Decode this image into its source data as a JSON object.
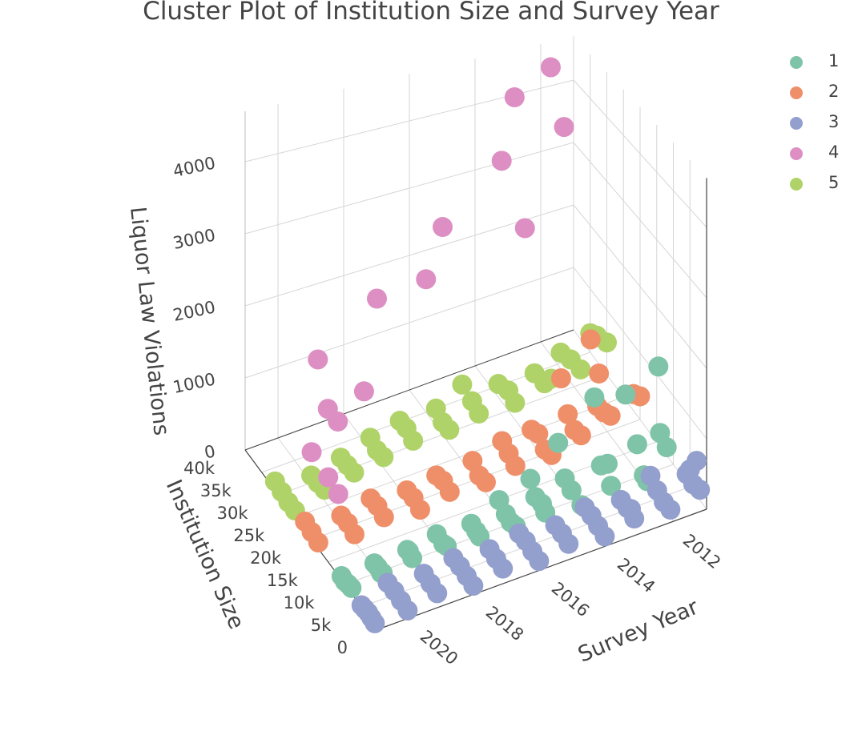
{
  "chart_data": {
    "type": "scatter",
    "title": "Cluster Plot of Institution Size and Survey Year",
    "x_axis": {
      "label": "Survey Year",
      "ticks": [
        "2012",
        "2014",
        "2016",
        "2018",
        "2020"
      ],
      "range": [
        2011,
        2021
      ]
    },
    "y_axis": {
      "label": "Institution Size",
      "ticks": [
        "0",
        "5k",
        "10k",
        "15k",
        "20k",
        "25k",
        "30k",
        "35k",
        "40k"
      ],
      "range": [
        0,
        40000
      ]
    },
    "z_axis": {
      "label": "Liquor Law Violations",
      "ticks": [
        "0",
        "1000",
        "2000",
        "3000",
        "4000"
      ],
      "range": [
        0,
        4700
      ]
    },
    "legend": {
      "position": "top-right"
    },
    "series": [
      {
        "name": "1",
        "color": "#7fc4a8",
        "points": [
          [
            2011,
            14000,
            200
          ],
          [
            2011,
            12000,
            120
          ],
          [
            2012,
            11000,
            400
          ],
          [
            2012,
            9000,
            80
          ],
          [
            2012,
            8000,
            60
          ],
          [
            2013,
            10000,
            350
          ],
          [
            2013,
            12000,
            200
          ],
          [
            2013,
            9000,
            100
          ],
          [
            2014,
            11000,
            80
          ],
          [
            2014,
            8000,
            60
          ],
          [
            2014,
            13000,
            120
          ],
          [
            2015,
            9000,
            60
          ],
          [
            2015,
            10000,
            120
          ],
          [
            2015,
            12000,
            90
          ],
          [
            2016,
            11000,
            80
          ],
          [
            2016,
            9500,
            60
          ],
          [
            2016,
            8000,
            100
          ],
          [
            2016,
            13000,
            150
          ],
          [
            2017,
            10000,
            70
          ],
          [
            2017,
            9000,
            60
          ],
          [
            2017,
            11500,
            80
          ],
          [
            2018,
            10000,
            60
          ],
          [
            2018,
            9000,
            90
          ],
          [
            2018,
            12000,
            70
          ],
          [
            2019,
            9500,
            60
          ],
          [
            2019,
            11000,
            80
          ],
          [
            2019,
            10500,
            90
          ],
          [
            2020,
            9000,
            50
          ],
          [
            2020,
            10000,
            70
          ],
          [
            2020,
            11000,
            60
          ],
          [
            2020,
            8500,
            80
          ],
          [
            2021,
            9000,
            60
          ],
          [
            2021,
            10000,
            40
          ],
          [
            2021,
            11000,
            50
          ],
          [
            2021,
            8000,
            70
          ],
          [
            2012,
            14500,
            900
          ],
          [
            2011,
            14500,
            1150
          ],
          [
            2013,
            14000,
            1050
          ],
          [
            2015,
            13500,
            250
          ],
          [
            2014,
            15000,
            500
          ]
        ]
      },
      {
        "name": "2",
        "color": "#ef8f6a",
        "points": [
          [
            2011,
            20000,
            350
          ],
          [
            2011,
            22000,
            250
          ],
          [
            2012,
            19000,
            300
          ],
          [
            2012,
            21000,
            220
          ],
          [
            2012,
            23000,
            180
          ],
          [
            2012,
            25000,
            1050
          ],
          [
            2013,
            18000,
            250
          ],
          [
            2013,
            20000,
            200
          ],
          [
            2013,
            22000,
            300
          ],
          [
            2014,
            17000,
            200
          ],
          [
            2014,
            19000,
            150
          ],
          [
            2014,
            21000,
            250
          ],
          [
            2014,
            23000,
            180
          ],
          [
            2015,
            18000,
            150
          ],
          [
            2015,
            20000,
            200
          ],
          [
            2015,
            22000,
            250
          ],
          [
            2016,
            17000,
            150
          ],
          [
            2016,
            19000,
            120
          ],
          [
            2016,
            21000,
            200
          ],
          [
            2017,
            18000,
            120
          ],
          [
            2017,
            20000,
            150
          ],
          [
            2017,
            22000,
            100
          ],
          [
            2018,
            17000,
            100
          ],
          [
            2018,
            19000,
            140
          ],
          [
            2018,
            21000,
            120
          ],
          [
            2019,
            18000,
            100
          ],
          [
            2019,
            20000,
            130
          ],
          [
            2019,
            22000,
            110
          ],
          [
            2020,
            17000,
            90
          ],
          [
            2020,
            19000,
            120
          ],
          [
            2020,
            21000,
            100
          ],
          [
            2021,
            18000,
            80
          ],
          [
            2021,
            20000,
            100
          ],
          [
            2021,
            22000,
            120
          ],
          [
            2013,
            24000,
            700
          ],
          [
            2012,
            22500,
            700
          ]
        ]
      },
      {
        "name": "3",
        "color": "#939fcc",
        "points": [
          [
            2011,
            2000,
            150
          ],
          [
            2011,
            4000,
            100
          ],
          [
            2011,
            6000,
            120
          ],
          [
            2011,
            3000,
            500
          ],
          [
            2011,
            5000,
            250
          ],
          [
            2012,
            1000,
            100
          ],
          [
            2012,
            3000,
            80
          ],
          [
            2012,
            5000,
            120
          ],
          [
            2012,
            7000,
            200
          ],
          [
            2013,
            2000,
            80
          ],
          [
            2013,
            4000,
            100
          ],
          [
            2013,
            6000,
            90
          ],
          [
            2013,
            3000,
            150
          ],
          [
            2014,
            1000,
            60
          ],
          [
            2014,
            3000,
            80
          ],
          [
            2014,
            5000,
            100
          ],
          [
            2014,
            7000,
            90
          ],
          [
            2015,
            2000,
            60
          ],
          [
            2015,
            4000,
            80
          ],
          [
            2015,
            6000,
            70
          ],
          [
            2016,
            1000,
            50
          ],
          [
            2016,
            3000,
            60
          ],
          [
            2016,
            5000,
            80
          ],
          [
            2016,
            7000,
            60
          ],
          [
            2017,
            2000,
            50
          ],
          [
            2017,
            4000,
            60
          ],
          [
            2017,
            6000,
            70
          ],
          [
            2018,
            1000,
            40
          ],
          [
            2018,
            3000,
            50
          ],
          [
            2018,
            5000,
            60
          ],
          [
            2018,
            7000,
            50
          ],
          [
            2019,
            2000,
            40
          ],
          [
            2019,
            4000,
            50
          ],
          [
            2019,
            6000,
            60
          ],
          [
            2020,
            1000,
            30
          ],
          [
            2020,
            3000,
            40
          ],
          [
            2020,
            5000,
            50
          ],
          [
            2020,
            7000,
            40
          ],
          [
            2021,
            1000,
            20
          ],
          [
            2021,
            2000,
            30
          ],
          [
            2021,
            3000,
            40
          ],
          [
            2021,
            4000,
            30
          ],
          [
            2021,
            5000,
            20
          ]
        ]
      },
      {
        "name": "4",
        "color": "#dd8fc3",
        "points": [
          [
            2012,
            37000,
            4500
          ],
          [
            2012,
            33000,
            3800
          ],
          [
            2013,
            38000,
            4100
          ],
          [
            2014,
            32000,
            3600
          ],
          [
            2016,
            30000,
            3000
          ],
          [
            2014,
            25000,
            3000
          ],
          [
            2016,
            35000,
            1950
          ],
          [
            2018,
            30000,
            2250
          ],
          [
            2020,
            28000,
            1800
          ],
          [
            2019,
            24000,
            1450
          ],
          [
            2020,
            22000,
            1300
          ],
          [
            2021,
            20000,
            1150
          ],
          [
            2021,
            15000,
            1100
          ],
          [
            2021,
            12000,
            1050
          ],
          [
            2020,
            25000,
            1300
          ]
        ]
      },
      {
        "name": "5",
        "color": "#afd368",
        "points": [
          [
            2011,
            30000,
            500
          ],
          [
            2011,
            33000,
            400
          ],
          [
            2011,
            35000,
            300
          ],
          [
            2012,
            28000,
            400
          ],
          [
            2012,
            31000,
            350
          ],
          [
            2012,
            34000,
            250
          ],
          [
            2013,
            29000,
            300
          ],
          [
            2013,
            32000,
            250
          ],
          [
            2013,
            27000,
            500
          ],
          [
            2014,
            30000,
            300
          ],
          [
            2014,
            33000,
            200
          ],
          [
            2014,
            28000,
            250
          ],
          [
            2015,
            29000,
            200
          ],
          [
            2015,
            31000,
            250
          ],
          [
            2015,
            34000,
            300
          ],
          [
            2016,
            28000,
            200
          ],
          [
            2016,
            30000,
            180
          ],
          [
            2016,
            32000,
            250
          ],
          [
            2017,
            29000,
            150
          ],
          [
            2017,
            31000,
            200
          ],
          [
            2017,
            33000,
            180
          ],
          [
            2018,
            28000,
            150
          ],
          [
            2018,
            30000,
            120
          ],
          [
            2018,
            32000,
            170
          ],
          [
            2019,
            29000,
            140
          ],
          [
            2019,
            31000,
            120
          ],
          [
            2019,
            27000,
            160
          ],
          [
            2020,
            28000,
            120
          ],
          [
            2020,
            30000,
            100
          ],
          [
            2020,
            26000,
            150
          ],
          [
            2021,
            27000,
            80
          ],
          [
            2021,
            29000,
            100
          ],
          [
            2021,
            31000,
            120
          ],
          [
            2021,
            25000,
            90
          ]
        ]
      }
    ]
  }
}
